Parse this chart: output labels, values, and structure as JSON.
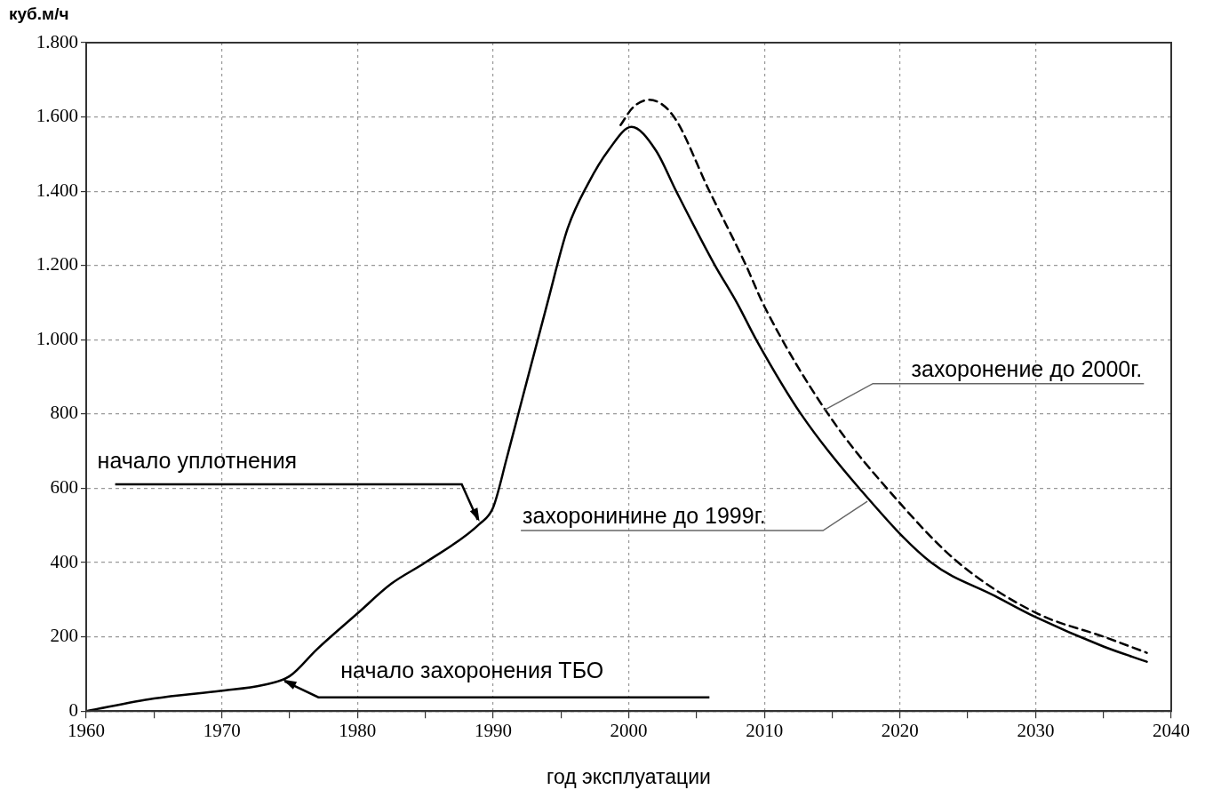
{
  "chart_data": {
    "type": "line",
    "xlabel": "год эксплуатации",
    "ylabel": "куб.м/ч",
    "xlim": [
      1960,
      2040
    ],
    "xticks": [
      1960,
      {
        "value": 1965,
        "label": null
      },
      1970,
      {
        "value": 1975,
        "label": null
      },
      1980,
      {
        "value": 1985,
        "label": null
      },
      1990,
      {
        "value": 1995,
        "label": null
      },
      2000,
      {
        "value": 2005,
        "label": null
      },
      2010,
      {
        "value": 2015,
        "label": null
      },
      2020,
      {
        "value": 2025,
        "label": null
      },
      2030,
      {
        "value": 2035,
        "label": null
      },
      2040
    ],
    "ylim": [
      0,
      1800
    ],
    "yticks": [
      0,
      200,
      400,
      600,
      800,
      {
        "value": 1000,
        "label": "1.000"
      },
      {
        "value": 1200,
        "label": "1.200"
      },
      {
        "value": 1400,
        "label": "1.400"
      },
      {
        "value": 1600,
        "label": "1.600"
      },
      {
        "value": 1800,
        "label": "1.800"
      }
    ],
    "grid": true,
    "legend": false,
    "marker": "none",
    "series": [
      {
        "color": "#000000",
        "line_style": "solid",
        "x": [
          1960,
          1965,
          1970,
          1973,
          1975,
          1977,
          1980,
          1982.5,
          1985,
          1989,
          1990,
          1991,
          1992,
          1994,
          1995.5,
          1997,
          1998.5,
          2000.2,
          2002,
          2003.5,
          2006.3,
          2008,
          2009.4,
          2012.7,
          2017,
          2022.3,
          2027,
          2030,
          2035,
          2038.2
        ],
        "values": [
          0,
          34,
          55,
          70,
          94,
          166,
          263,
          343,
          400,
          504,
          548,
          680,
          820,
          1098,
          1300,
          1420,
          1510,
          1573,
          1510,
          1400,
          1204,
          1098,
          1000,
          800,
          600,
          400,
          310,
          253,
          174,
          133
        ]
      },
      {
        "color": "#000000",
        "line_style": "dashed",
        "x": [
          1999.4,
          2000.3,
          2001.5,
          2003.3,
          2005.9,
          2008.6,
          2010,
          2014.7,
          2020,
          2024.3,
          2030,
          2035.2,
          2038.2
        ],
        "values": [
          1578,
          1625,
          1646,
          1602,
          1404,
          1204,
          1090,
          800,
          560,
          400,
          265,
          198,
          157
        ]
      }
    ],
    "annotations": [
      {
        "text": "начало уплотнения",
        "x": 1989,
        "y": 510
      },
      {
        "text": "начало захоронения ТБО",
        "x": 1974.5,
        "y": 85
      },
      {
        "text": "захоронение до 2000г.",
        "x": 2014.4,
        "y": 810
      },
      {
        "text": "захоронинине до 1999г.",
        "x": 2017.6,
        "y": 565
      }
    ]
  }
}
